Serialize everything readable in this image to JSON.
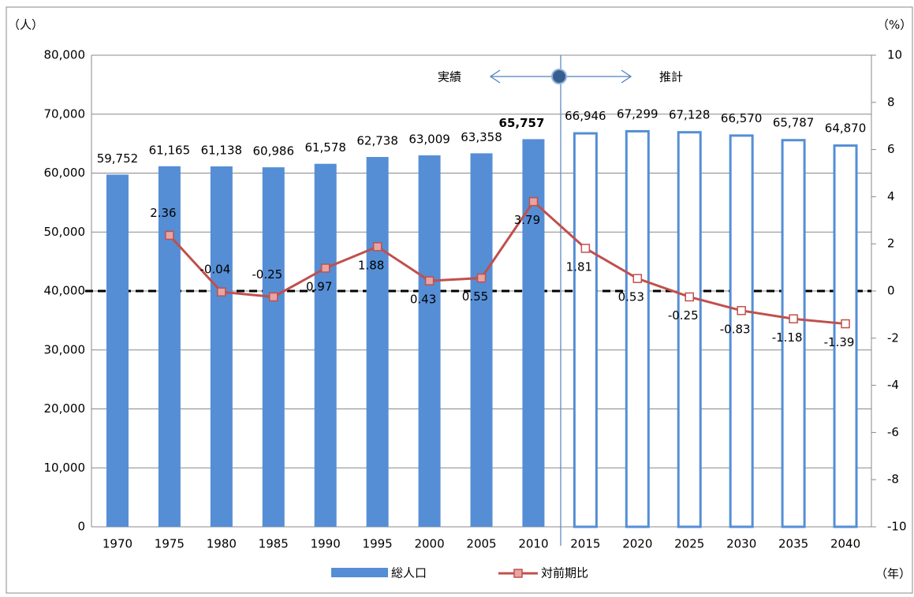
{
  "chart_data": {
    "type": "bar",
    "categories": [
      "1970",
      "1975",
      "1980",
      "1985",
      "1990",
      "1995",
      "2000",
      "2005",
      "2010",
      "2015",
      "2020",
      "2025",
      "2030",
      "2035",
      "2040"
    ],
    "series": [
      {
        "name": "総人口",
        "type": "bar",
        "color": "#558ed5",
        "values": [
          59752,
          61165,
          61138,
          60986,
          61578,
          62738,
          63009,
          63358,
          65757,
          66946,
          67299,
          67128,
          66570,
          65787,
          64870
        ],
        "value_labels": [
          "59,752",
          "61,165",
          "61,138",
          "60,986",
          "61,578",
          "62,738",
          "63,009",
          "63,358",
          "65,757",
          "66,946",
          "67,299",
          "67,128",
          "66,570",
          "65,787",
          "64,870"
        ],
        "bar_fills": [
          "#558ed5",
          "#558ed5",
          "#558ed5",
          "#558ed5",
          "#558ed5",
          "#558ed5",
          "#558ed5",
          "#558ed5",
          "#558ed5",
          "#ffffff",
          "#ffffff",
          "#ffffff",
          "#ffffff",
          "#ffffff",
          "#ffffff"
        ]
      },
      {
        "name": "対前期比",
        "type": "line",
        "axis": "y2",
        "color": "#c0504d",
        "values": [
          null,
          2.36,
          -0.04,
          -0.25,
          0.97,
          1.88,
          0.43,
          0.55,
          3.79,
          1.81,
          0.53,
          -0.25,
          -0.83,
          -1.18,
          -1.39
        ],
        "marker_fills": [
          "#e6a5a3",
          "#e6a5a3",
          "#e6a5a3",
          "#e6a5a3",
          "#e6a5a3",
          "#e6a5a3",
          "#e6a5a3",
          "#e6a5a3",
          "#e6a5a3",
          "#ffffff",
          "#ffffff",
          "#ffffff",
          "#ffffff",
          "#ffffff",
          "#ffffff"
        ]
      }
    ],
    "ylim": [
      0,
      80000
    ],
    "yticks": [
      0,
      {
        "value": 10000,
        "label": "10,000"
      },
      {
        "value": 20000,
        "label": "20,000"
      },
      {
        "value": 30000,
        "label": "30,000"
      },
      {
        "value": 40000,
        "label": "40,000"
      },
      {
        "value": 50000,
        "label": "50,000"
      },
      {
        "value": 60000,
        "label": "60,000"
      },
      {
        "value": 70000,
        "label": "70,000"
      },
      {
        "value": 80000,
        "label": "80,000"
      }
    ],
    "y2lim": [
      -10,
      10
    ],
    "y2ticks": [
      -10,
      -8,
      -6,
      -4,
      -2,
      0,
      2,
      4,
      6,
      8,
      10
    ],
    "y_unit": "（人）",
    "y2_unit": "（%）",
    "x_unit": "（年）",
    "annotations": {
      "actual": "実績",
      "estimate": "推計"
    },
    "grid": true
  }
}
